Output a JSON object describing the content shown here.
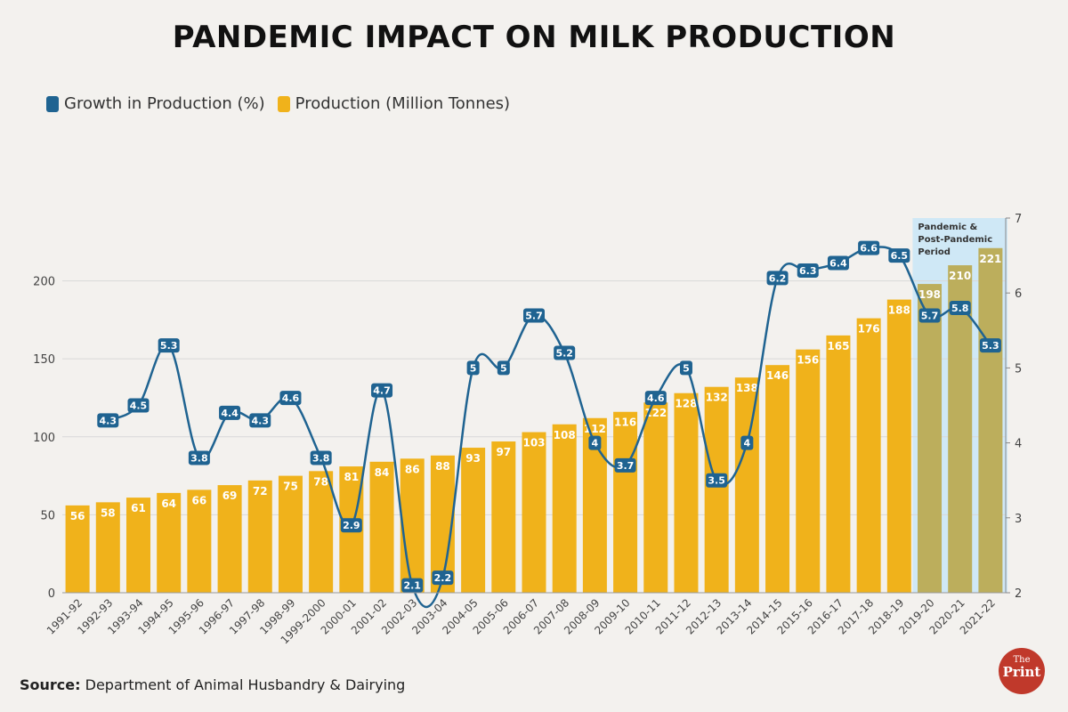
{
  "chart_data": {
    "type": "bar+line",
    "title": "PANDEMIC IMPACT ON MILK PRODUCTION",
    "categories": [
      "1991-92",
      "1992-93",
      "1993-94",
      "1994-95",
      "1995-96",
      "1996-97",
      "1997-98",
      "1998-99",
      "1999-2000",
      "2000-01",
      "2001-02",
      "2002-03",
      "2003-04",
      "2004-05",
      "2005-06",
      "2006-07",
      "2007-08",
      "2008-09",
      "2009-10",
      "2010-11",
      "2011-12",
      "2012-13",
      "2013-14",
      "2014-15",
      "2015-16",
      "2016-17",
      "2017-18",
      "2018-19",
      "2019-20",
      "2020-21",
      "2021-22"
    ],
    "series": [
      {
        "name": "Production (Million Tonnes)",
        "type": "bar",
        "axis": "left",
        "color": "#f0b21b",
        "values": [
          56,
          58,
          61,
          64,
          66,
          69,
          72,
          75,
          78,
          81,
          84,
          86,
          88,
          93,
          97,
          103,
          108,
          112,
          116,
          122,
          128,
          132,
          138,
          146,
          156,
          165,
          176,
          188,
          198,
          210,
          221
        ]
      },
      {
        "name": "Growth in Production (%)",
        "type": "line",
        "axis": "right",
        "color": "#1f6391",
        "values": [
          null,
          4.3,
          4.5,
          5.3,
          3.8,
          4.4,
          4.3,
          4.6,
          3.8,
          2.9,
          4.7,
          2.1,
          2.2,
          5,
          5,
          5.7,
          5.2,
          4,
          3.7,
          4.6,
          5,
          3.5,
          4,
          6.2,
          6.3,
          6.4,
          6.6,
          6.5,
          5.7,
          5.8,
          5.3
        ]
      }
    ],
    "y_left": {
      "ticks": [
        0,
        50,
        100,
        150,
        200
      ],
      "range": [
        0,
        230
      ]
    },
    "y_right": {
      "ticks": [
        2,
        3,
        4,
        5,
        6,
        7
      ],
      "range": [
        2,
        7
      ]
    },
    "highlight": {
      "label_lines": [
        "Pandemic &",
        "Post-Pandemic",
        "Period"
      ],
      "from": "2019-20",
      "to": "2021-22",
      "bar_color": "#bcae5c"
    },
    "legend_position": "top-left"
  },
  "legend": [
    {
      "label": "Growth in Production (%)",
      "color": "#1f6391"
    },
    {
      "label": "Production (Million Tonnes)",
      "color": "#f0b21b"
    }
  ],
  "source": {
    "label": "Source:",
    "text": "Department of Animal Husbandry & Dairying"
  },
  "logo": {
    "line1": "The",
    "line2": "Print"
  }
}
